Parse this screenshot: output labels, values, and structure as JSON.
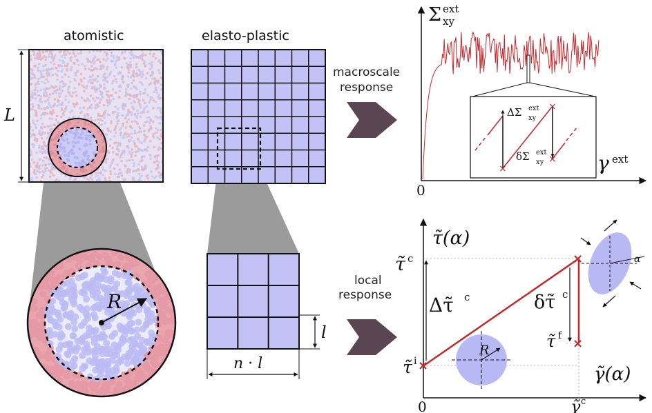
{
  "labels": {
    "atomistic": "atomistic",
    "elasto_plastic": "elasto-plastic",
    "macroscale_response_1": "macroscale",
    "macroscale_response_2": "response",
    "local_response_1": "local",
    "local_response_2": "response",
    "L": "L",
    "R": "R",
    "l": "l",
    "n_dot_l": "n · l",
    "Sigma": "Σ",
    "Sigma_sup": "ext",
    "Sigma_sub": "xy",
    "gamma_ext": "γ",
    "gamma_ext_sup": "ext",
    "zero_top": "0",
    "zero_bottom": "0",
    "delta_Sigma_big": "ΔΣ",
    "delta_Sigma_small": "δΣ",
    "tau_alpha": "τ̃(α)",
    "tau_c": "τ̃",
    "tau_c_sup": "c",
    "tau_i": "τ̃",
    "tau_i_sup": "i",
    "tau_f": "τ̃",
    "tau_f_sup": "f",
    "Delta_tau_c": "Δτ̃",
    "Delta_tau_c_sup": "c",
    "delta_tau_c": "δτ̃",
    "delta_tau_c_sup": "c",
    "gamma_alpha": "γ̃(α)",
    "gamma_c": "γ̃",
    "gamma_c_sup": "c",
    "alpha": "α",
    "R_inset": "R"
  },
  "colors": {
    "blue": "#b8b8f5",
    "blue_dark": "#9c9cec",
    "red": "#e8a0a8",
    "curve": "#c0282a",
    "arrow": "#5a4652",
    "zoom": "#7a7a7a"
  },
  "chart_data": {
    "type": "line",
    "description_axes": [
      "Σxy ext",
      "γ ext"
    ],
    "note": "stress-strain curve with stick-slip fluctuations"
  }
}
